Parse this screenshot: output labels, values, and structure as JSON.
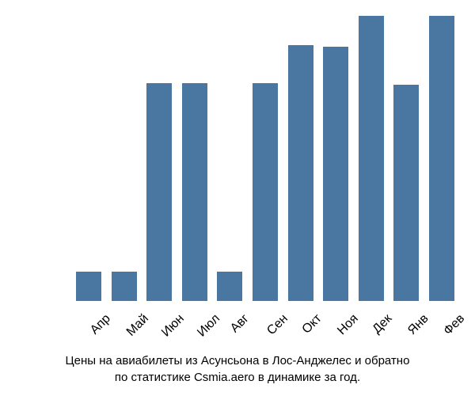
{
  "chart": {
    "type": "bar",
    "categories": [
      "Апр",
      "Май",
      "Июн",
      "Июл",
      "Авг",
      "Сен",
      "Окт",
      "Ноя",
      "Дек",
      "Янв",
      "Фев"
    ],
    "values": [
      67800,
      67800,
      79400,
      79400,
      67800,
      79400,
      81700,
      81600,
      83500,
      79300,
      83500
    ],
    "bar_color": "#4a76a2",
    "background_color": "#ffffff",
    "ylim_min": 66000,
    "ylim_max": 84000,
    "ytick_step": 2000,
    "ytick_suffix": " ₽",
    "yticks": [
      66000,
      68000,
      70000,
      72000,
      74000,
      76000,
      78000,
      80000,
      82000,
      84000
    ],
    "bar_width_ratio": 0.72,
    "axis_fontsize": 15,
    "label_fontsize": 16,
    "caption_fontsize": 15
  },
  "caption": {
    "line1": "Цены на авиабилеты из Асунсьона в Лос-Анджелес и обратно",
    "line2": "по статистике Csmia.aero в динамике за год."
  }
}
